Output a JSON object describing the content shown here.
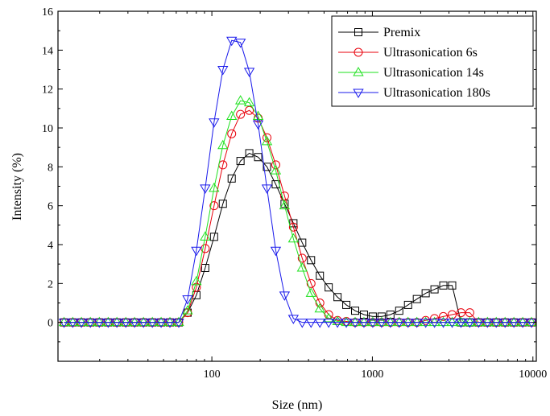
{
  "chart_data": {
    "type": "line",
    "xlabel": "Size (nm)",
    "ylabel": "Intensity (%)",
    "xscale": "log",
    "xlim": [
      11,
      10500
    ],
    "ylim": [
      -2,
      16
    ],
    "x_ticks": [
      100,
      1000,
      10000
    ],
    "x_tick_labels": [
      "100",
      "1000",
      "10000"
    ],
    "y_ticks": [
      0,
      2,
      4,
      6,
      8,
      10,
      12,
      14,
      16
    ],
    "y_tick_labels": [
      "0",
      "2",
      "4",
      "6",
      "8",
      "10",
      "12",
      "14",
      "16"
    ],
    "grid": false,
    "legend_position": "top-right",
    "x": [
      12,
      13.6,
      15.4,
      17.5,
      19.9,
      22.6,
      25.6,
      29.1,
      33,
      37.5,
      42.6,
      48.3,
      54.8,
      62.2,
      70.6,
      80.1,
      90.9,
      103.2,
      117.1,
      132.9,
      150.8,
      171.1,
      194.2,
      220.4,
      250.1,
      283.8,
      322.1,
      365.5,
      414.8,
      470.8,
      534.2,
      606.3,
      688,
      780.8,
      886.1,
      1005.6,
      1141.2,
      1295.1,
      1469.8,
      1668,
      1892.9,
      2148.2,
      2437.9,
      2766.7,
      3139.8,
      3563.2,
      4043.7,
      4589.1,
      5208,
      5910.3,
      6707.4,
      7612,
      8638.5,
      9803.4
    ],
    "series": [
      {
        "name": "Premix",
        "color": "#000000",
        "marker": "square",
        "values": [
          0,
          0,
          0,
          0,
          0,
          0,
          0,
          0,
          0,
          0,
          0,
          0,
          0,
          0,
          0.5,
          1.4,
          2.8,
          4.4,
          6.1,
          7.4,
          8.3,
          8.7,
          8.5,
          8.0,
          7.1,
          6.1,
          5.1,
          4.1,
          3.2,
          2.4,
          1.8,
          1.3,
          0.9,
          0.6,
          0.4,
          0.3,
          0.3,
          0.4,
          0.6,
          0.9,
          1.2,
          1.5,
          1.7,
          1.9,
          1.9,
          0,
          0,
          0,
          0,
          0,
          0,
          0,
          0,
          0
        ]
      },
      {
        "name": "Ultrasonication 6s",
        "color": "#e8000b",
        "marker": "circle",
        "values": [
          0,
          0,
          0,
          0,
          0,
          0,
          0,
          0,
          0,
          0,
          0,
          0,
          0,
          0,
          0.5,
          1.8,
          3.8,
          6.0,
          8.1,
          9.7,
          10.7,
          10.9,
          10.5,
          9.5,
          8.1,
          6.5,
          4.9,
          3.3,
          2.0,
          1.0,
          0.4,
          0.1,
          0.05,
          0,
          0,
          0,
          0,
          0,
          0,
          0,
          0,
          0.1,
          0.2,
          0.3,
          0.4,
          0.5,
          0.5,
          0,
          0,
          0,
          0,
          0,
          0,
          0
        ]
      },
      {
        "name": "Ultrasonication 14s",
        "color": "#1ee11e",
        "marker": "triangle-up",
        "values": [
          0,
          0,
          0,
          0,
          0,
          0,
          0,
          0,
          0,
          0,
          0,
          0,
          0,
          0,
          0.6,
          2.1,
          4.4,
          6.9,
          9.1,
          10.6,
          11.4,
          11.3,
          10.6,
          9.3,
          7.8,
          6.0,
          4.3,
          2.8,
          1.5,
          0.7,
          0.2,
          0.05,
          0,
          0,
          0,
          0,
          0,
          0,
          0,
          0,
          0,
          0,
          0,
          0,
          0,
          0,
          0,
          0,
          0,
          0,
          0,
          0,
          0,
          0
        ]
      },
      {
        "name": "Ultrasonication 180s",
        "color": "#1a1aeb",
        "marker": "triangle-down",
        "values": [
          0,
          0,
          0,
          0,
          0,
          0,
          0,
          0,
          0,
          0,
          0,
          0,
          0,
          0,
          1.2,
          3.7,
          6.9,
          10.3,
          13.0,
          14.5,
          14.4,
          12.9,
          10.2,
          6.9,
          3.7,
          1.4,
          0.2,
          0,
          0,
          0,
          0,
          0,
          0,
          0,
          0,
          0,
          0,
          0,
          0,
          0,
          0,
          0,
          0,
          0,
          0,
          0,
          0,
          0,
          0,
          0,
          0,
          0,
          0,
          0
        ]
      }
    ]
  }
}
